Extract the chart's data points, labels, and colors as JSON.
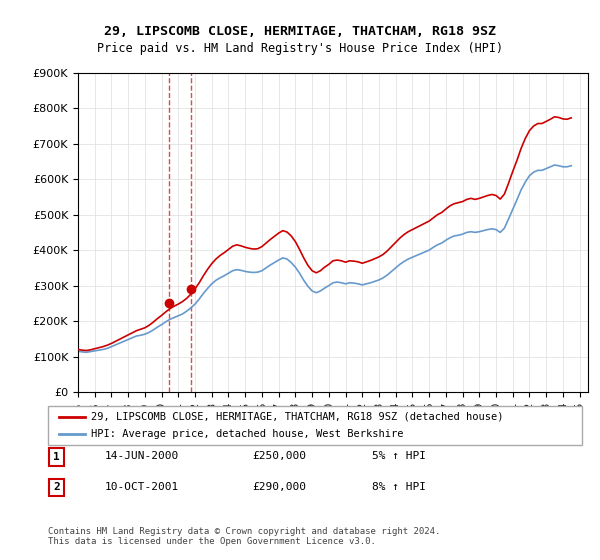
{
  "title": "29, LIPSCOMB CLOSE, HERMITAGE, THATCHAM, RG18 9SZ",
  "subtitle": "Price paid vs. HM Land Registry's House Price Index (HPI)",
  "ylabel_ticks": [
    "£0",
    "£100K",
    "£200K",
    "£300K",
    "£400K",
    "£500K",
    "£600K",
    "£700K",
    "£800K",
    "£900K"
  ],
  "ytick_values": [
    0,
    100000,
    200000,
    300000,
    400000,
    500000,
    600000,
    700000,
    800000,
    900000
  ],
  "ylim": [
    0,
    900000
  ],
  "xlim_start": 1995.0,
  "xlim_end": 2025.5,
  "legend_line1": "29, LIPSCOMB CLOSE, HERMITAGE, THATCHAM, RG18 9SZ (detached house)",
  "legend_line2": "HPI: Average price, detached house, West Berkshire",
  "transaction1_label": "1",
  "transaction1_date": "14-JUN-2000",
  "transaction1_price": "£250,000",
  "transaction1_hpi": "5% ↑ HPI",
  "transaction1_x": 2000.45,
  "transaction2_label": "2",
  "transaction2_date": "10-OCT-2001",
  "transaction2_price": "£290,000",
  "transaction2_hpi": "8% ↑ HPI",
  "transaction2_x": 2001.78,
  "red_color": "#cc0000",
  "blue_color": "#6699cc",
  "footer_text": "Contains HM Land Registry data © Crown copyright and database right 2024.\nThis data is licensed under the Open Government Licence v3.0.",
  "hpi_data_x": [
    1995.0,
    1995.25,
    1995.5,
    1995.75,
    1996.0,
    1996.25,
    1996.5,
    1996.75,
    1997.0,
    1997.25,
    1997.5,
    1997.75,
    1998.0,
    1998.25,
    1998.5,
    1998.75,
    1999.0,
    1999.25,
    1999.5,
    1999.75,
    2000.0,
    2000.25,
    2000.5,
    2000.75,
    2001.0,
    2001.25,
    2001.5,
    2001.75,
    2002.0,
    2002.25,
    2002.5,
    2002.75,
    2003.0,
    2003.25,
    2003.5,
    2003.75,
    2004.0,
    2004.25,
    2004.5,
    2004.75,
    2005.0,
    2005.25,
    2005.5,
    2005.75,
    2006.0,
    2006.25,
    2006.5,
    2006.75,
    2007.0,
    2007.25,
    2007.5,
    2007.75,
    2008.0,
    2008.25,
    2008.5,
    2008.75,
    2009.0,
    2009.25,
    2009.5,
    2009.75,
    2010.0,
    2010.25,
    2010.5,
    2010.75,
    2011.0,
    2011.25,
    2011.5,
    2011.75,
    2012.0,
    2012.25,
    2012.5,
    2012.75,
    2013.0,
    2013.25,
    2013.5,
    2013.75,
    2014.0,
    2014.25,
    2014.5,
    2014.75,
    2015.0,
    2015.25,
    2015.5,
    2015.75,
    2016.0,
    2016.25,
    2016.5,
    2016.75,
    2017.0,
    2017.25,
    2017.5,
    2017.75,
    2018.0,
    2018.25,
    2018.5,
    2018.75,
    2019.0,
    2019.25,
    2019.5,
    2019.75,
    2020.0,
    2020.25,
    2020.5,
    2020.75,
    2021.0,
    2021.25,
    2021.5,
    2021.75,
    2022.0,
    2022.25,
    2022.5,
    2022.75,
    2023.0,
    2023.25,
    2023.5,
    2023.75,
    2024.0,
    2024.25,
    2024.5
  ],
  "hpi_data_y": [
    115000,
    113000,
    112000,
    114000,
    116000,
    118000,
    120000,
    123000,
    128000,
    133000,
    138000,
    143000,
    148000,
    153000,
    158000,
    160000,
    163000,
    168000,
    175000,
    183000,
    190000,
    198000,
    205000,
    210000,
    215000,
    220000,
    228000,
    237000,
    248000,
    262000,
    278000,
    292000,
    305000,
    315000,
    322000,
    328000,
    335000,
    342000,
    345000,
    343000,
    340000,
    338000,
    337000,
    338000,
    342000,
    350000,
    358000,
    365000,
    372000,
    378000,
    375000,
    365000,
    352000,
    335000,
    315000,
    298000,
    285000,
    280000,
    285000,
    293000,
    300000,
    308000,
    310000,
    308000,
    305000,
    308000,
    307000,
    305000,
    302000,
    305000,
    308000,
    312000,
    316000,
    322000,
    330000,
    340000,
    350000,
    360000,
    368000,
    375000,
    380000,
    385000,
    390000,
    395000,
    400000,
    408000,
    415000,
    420000,
    428000,
    435000,
    440000,
    442000,
    445000,
    450000,
    452000,
    450000,
    452000,
    455000,
    458000,
    460000,
    458000,
    450000,
    462000,
    488000,
    515000,
    542000,
    570000,
    592000,
    610000,
    620000,
    625000,
    625000,
    630000,
    635000,
    640000,
    638000,
    635000,
    635000,
    638000
  ],
  "red_data_x": [
    1995.0,
    1995.25,
    1995.5,
    1995.75,
    1996.0,
    1996.25,
    1996.5,
    1996.75,
    1997.0,
    1997.25,
    1997.5,
    1997.75,
    1998.0,
    1998.25,
    1998.5,
    1998.75,
    1999.0,
    1999.25,
    1999.5,
    1999.75,
    2000.0,
    2000.25,
    2000.5,
    2000.75,
    2001.0,
    2001.25,
    2001.5,
    2001.75,
    2002.0,
    2002.25,
    2002.5,
    2002.75,
    2003.0,
    2003.25,
    2003.5,
    2003.75,
    2004.0,
    2004.25,
    2004.5,
    2004.75,
    2005.0,
    2005.25,
    2005.5,
    2005.75,
    2006.0,
    2006.25,
    2006.5,
    2006.75,
    2007.0,
    2007.25,
    2007.5,
    2007.75,
    2008.0,
    2008.25,
    2008.5,
    2008.75,
    2009.0,
    2009.25,
    2009.5,
    2009.75,
    2010.0,
    2010.25,
    2010.5,
    2010.75,
    2011.0,
    2011.25,
    2011.5,
    2011.75,
    2012.0,
    2012.25,
    2012.5,
    2012.75,
    2013.0,
    2013.25,
    2013.5,
    2013.75,
    2014.0,
    2014.25,
    2014.5,
    2014.75,
    2015.0,
    2015.25,
    2015.5,
    2015.75,
    2016.0,
    2016.25,
    2016.5,
    2016.75,
    2017.0,
    2017.25,
    2017.5,
    2017.75,
    2018.0,
    2018.25,
    2018.5,
    2018.75,
    2019.0,
    2019.25,
    2019.5,
    2019.75,
    2020.0,
    2020.25,
    2020.5,
    2020.75,
    2021.0,
    2021.25,
    2021.5,
    2021.75,
    2022.0,
    2022.25,
    2022.5,
    2022.75,
    2023.0,
    2023.25,
    2023.5,
    2023.75,
    2024.0,
    2024.25,
    2024.5
  ],
  "red_data_y": [
    120000,
    118000,
    117000,
    119000,
    122000,
    125000,
    128000,
    132000,
    137000,
    143000,
    149000,
    155000,
    161000,
    167000,
    173000,
    177000,
    181000,
    188000,
    197000,
    207000,
    216000,
    226000,
    235000,
    242000,
    248000,
    255000,
    264000,
    276000,
    291000,
    308000,
    328000,
    346000,
    362000,
    375000,
    385000,
    393000,
    402000,
    411000,
    415000,
    412000,
    408000,
    405000,
    403000,
    404000,
    410000,
    420000,
    430000,
    439000,
    448000,
    455000,
    451000,
    440000,
    424000,
    402000,
    378000,
    357000,
    342000,
    336000,
    342000,
    352000,
    360000,
    370000,
    372000,
    370000,
    366000,
    370000,
    369000,
    367000,
    363000,
    367000,
    371000,
    376000,
    381000,
    388000,
    398000,
    410000,
    422000,
    434000,
    444000,
    452000,
    458000,
    464000,
    470000,
    476000,
    482000,
    491000,
    500000,
    506000,
    516000,
    525000,
    531000,
    534000,
    537000,
    543000,
    546000,
    543000,
    546000,
    550000,
    554000,
    557000,
    554000,
    544000,
    558000,
    589000,
    622000,
    653000,
    687000,
    715000,
    737000,
    750000,
    757000,
    757000,
    763000,
    769000,
    776000,
    774000,
    770000,
    769000,
    773000
  ],
  "marker1_x": 2000.45,
  "marker1_y": 250000,
  "marker2_x": 2001.78,
  "marker2_y": 290000
}
